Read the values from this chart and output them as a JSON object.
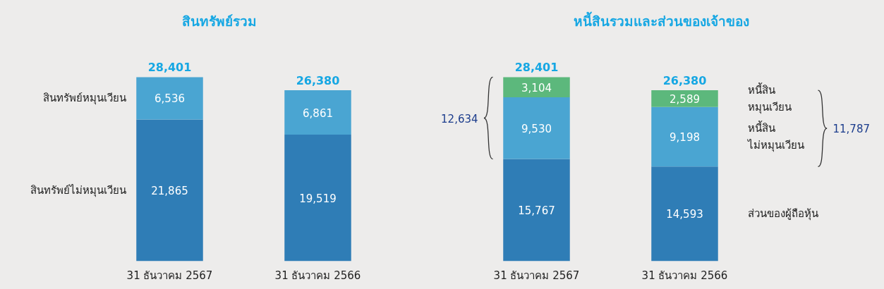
{
  "chart_data": [
    {
      "type": "bar",
      "title": "สินทรัพย์รวม",
      "categories": [
        "31 ธันวาคม 2567",
        "31 ธันวาคม 2566"
      ],
      "stacked": true,
      "series": [
        {
          "name": "สินทรัพย์ไม่หมุนเวียน",
          "color": "#2f7db6",
          "values": [
            21865,
            19519
          ],
          "value_labels": [
            "21,865",
            "19,519"
          ]
        },
        {
          "name": "สินทรัพย์หมุนเวียน",
          "color": "#4aa5d2",
          "values": [
            6536,
            6861
          ],
          "value_labels": [
            "6,536",
            "6,861"
          ]
        }
      ],
      "totals": [
        "28,401",
        "26,380"
      ]
    },
    {
      "type": "bar",
      "title": "หนี้สินรวมและส่วนของเจ้าของ",
      "categories": [
        "31 ธันวาคม 2567",
        "31 ธันวาคม 2566"
      ],
      "stacked": true,
      "series": [
        {
          "name": "ส่วนของผู้ถือหุ้น",
          "color": "#2f7db6",
          "values": [
            15767,
            14593
          ],
          "value_labels": [
            "15,767",
            "14,593"
          ]
        },
        {
          "name": "หนี้สิน\nไม่หมุนเวียน",
          "color": "#4aa5d2",
          "values": [
            9530,
            9198
          ],
          "value_labels": [
            "9,530",
            "9,198"
          ]
        },
        {
          "name": "หนี้สิน\nหมุนเวียน",
          "color": "#5cb87c",
          "values": [
            3104,
            2589
          ],
          "value_labels": [
            "3,104",
            "2,589"
          ]
        }
      ],
      "totals": [
        "28,401",
        "26,380"
      ],
      "annotations": [
        "12,634",
        "11,787"
      ]
    }
  ]
}
